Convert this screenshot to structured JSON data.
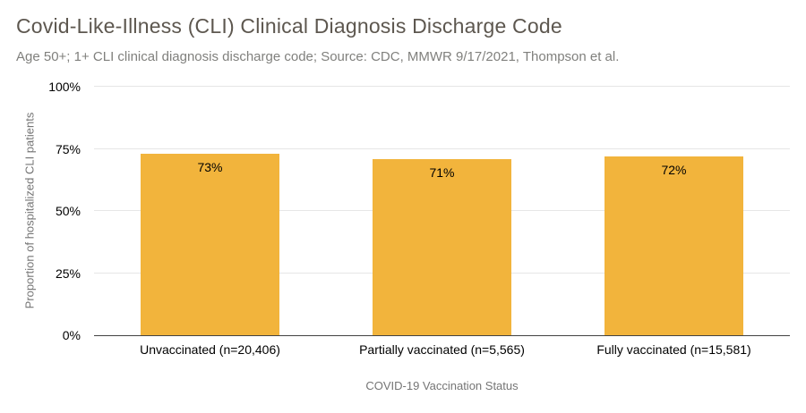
{
  "header": {
    "title": "Covid-Like-Illness (CLI) Clinical Diagnosis Discharge Code",
    "subtitle": "Age 50+; 1+ CLI clinical diagnosis discharge code; Source: CDC, MMWR 9/17/2021, Thompson et al."
  },
  "chart_data": {
    "type": "bar",
    "title": "Covid-Like-Illness (CLI) Clinical Diagnosis Discharge Code",
    "subtitle": "Age 50+; 1+ CLI clinical diagnosis discharge code; Source: CDC, MMWR 9/17/2021, Thompson et al.",
    "categories": [
      "Unvaccinated (n=20,406)",
      "Partially vaccinated (n=5,565)",
      "Fully vaccinated (n=15,581)"
    ],
    "values": [
      73,
      71,
      72
    ],
    "value_labels": [
      "73%",
      "71%",
      "72%"
    ],
    "xlabel": "COVID-19 Vaccination Status",
    "ylabel": "Proportion of hospitalized CLI patients",
    "ylim": [
      0,
      100
    ],
    "yticks": [
      "0%",
      "25%",
      "50%",
      "75%",
      "100%"
    ],
    "grid": true,
    "legend": "none",
    "colors": {
      "bar": "#f2b43c",
      "title_text": "#5d574f",
      "subtitle_text": "#80807d",
      "axis_text": "#757575",
      "tick_text": "#000000",
      "gridline": "#e6e6e6",
      "baseline": "#424242",
      "background": "#ffffff"
    }
  }
}
